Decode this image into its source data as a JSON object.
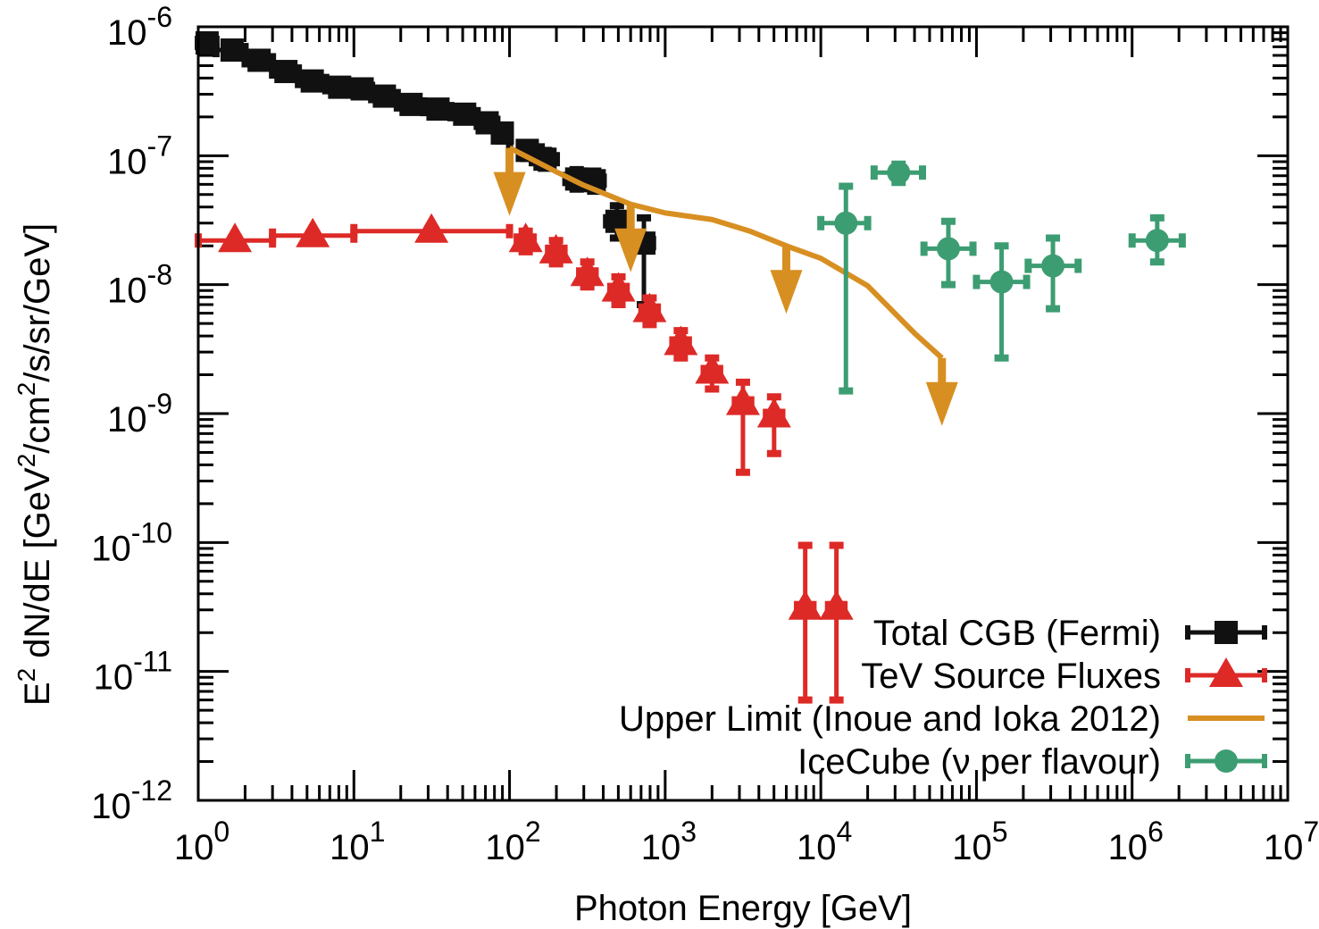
{
  "chart_data": {
    "type": "scatter",
    "title": "",
    "xlabel": "Photon Energy [GeV]",
    "ylabel_parts": {
      "pre": "E",
      "sup1": "2",
      "mid": " dN/dE [GeV",
      "sup2": "2",
      "mid2": "/cm",
      "sup3": "2",
      "post": "/s/sr/GeV]"
    },
    "ylabel": "E^2 dN/dE [GeV^2/cm^2/s/sr/GeV]",
    "xscale": "log",
    "yscale": "log",
    "xlim": [
      1,
      10000000
    ],
    "ylim": [
      1e-12,
      1e-06
    ],
    "x_ticks": [
      {
        "base": "10",
        "exp": "0",
        "value": 1
      },
      {
        "base": "10",
        "exp": "1",
        "value": 10
      },
      {
        "base": "10",
        "exp": "2",
        "value": 100
      },
      {
        "base": "10",
        "exp": "3",
        "value": 1000
      },
      {
        "base": "10",
        "exp": "4",
        "value": 10000
      },
      {
        "base": "10",
        "exp": "5",
        "value": 100000
      },
      {
        "base": "10",
        "exp": "6",
        "value": 1000000
      },
      {
        "base": "10",
        "exp": "7",
        "value": 10000000
      }
    ],
    "y_ticks": [
      {
        "base": "10",
        "exp": "-12",
        "value": 1e-12
      },
      {
        "base": "10",
        "exp": "-11",
        "value": 1e-11
      },
      {
        "base": "10",
        "exp": "-10",
        "value": 1e-10
      },
      {
        "base": "10",
        "exp": "-9",
        "value": 1e-09
      },
      {
        "base": "10",
        "exp": "-8",
        "value": 1e-08
      },
      {
        "base": "10",
        "exp": "-7",
        "value": 1e-07
      },
      {
        "base": "10",
        "exp": "-6",
        "value": 1e-06
      }
    ],
    "grid": false,
    "legend_position": "bottom-right",
    "series": [
      {
        "name": "Total CGB (Fermi)",
        "color": "#111111",
        "marker": "square",
        "points": [
          {
            "x": 1.14,
            "y": 7.5e-07,
            "xlo": 1.0,
            "xhi": 1.3,
            "ylo": 7e-07,
            "yhi": 8e-07
          },
          {
            "x": 1.65,
            "y": 6.6e-07,
            "xlo": 1.3,
            "xhi": 2.0,
            "ylo": 6.2e-07,
            "yhi": 7e-07
          },
          {
            "x": 2.46,
            "y": 5.5e-07,
            "xlo": 2.0,
            "xhi": 3.0,
            "ylo": 5.1e-07,
            "yhi": 5.9e-07
          },
          {
            "x": 3.66,
            "y": 4.5e-07,
            "xlo": 3.0,
            "xhi": 4.4,
            "ylo": 4.2e-07,
            "yhi": 4.8e-07
          },
          {
            "x": 5.4,
            "y": 3.8e-07,
            "xlo": 4.4,
            "xhi": 6.6,
            "ylo": 3.5e-07,
            "yhi": 4.1e-07
          },
          {
            "x": 8.1,
            "y": 3.4e-07,
            "xlo": 6.6,
            "xhi": 9.9,
            "ylo": 3.1e-07,
            "yhi": 3.7e-07
          },
          {
            "x": 11.3,
            "y": 3.3e-07,
            "xlo": 9.9,
            "xhi": 13.0,
            "ylo": 3e-07,
            "yhi": 3.6e-07
          },
          {
            "x": 15.7,
            "y": 2.9e-07,
            "xlo": 13.0,
            "xhi": 19.0,
            "ylo": 2.6e-07,
            "yhi": 3.2e-07
          },
          {
            "x": 23.3,
            "y": 2.5e-07,
            "xlo": 19.0,
            "xhi": 28.0,
            "ylo": 2.3e-07,
            "yhi": 2.7e-07
          },
          {
            "x": 34.7,
            "y": 2.3e-07,
            "xlo": 28.0,
            "xhi": 42.0,
            "ylo": 2.1e-07,
            "yhi": 2.5e-07
          },
          {
            "x": 51.5,
            "y": 2.1e-07,
            "xlo": 42.0,
            "xhi": 62.0,
            "ylo": 1.9e-07,
            "yhi": 2.3e-07
          },
          {
            "x": 71.8,
            "y": 1.8e-07,
            "xlo": 62.0,
            "xhi": 83.0,
            "ylo": 1.6e-07,
            "yhi": 2e-07
          },
          {
            "x": 89.9,
            "y": 1.5e-07,
            "xlo": 83.0,
            "xhi": 100.0,
            "ylo": 1.3e-07,
            "yhi": 1.7e-07
          },
          {
            "x": 130,
            "y": 1.1e-07,
            "xlo": 100,
            "xhi": 160,
            "ylo": 9.5e-08,
            "yhi": 1.25e-07
          },
          {
            "x": 169,
            "y": 9.4e-08,
            "xlo": 140,
            "xhi": 200,
            "ylo": 8e-08,
            "yhi": 1.1e-07
          },
          {
            "x": 270,
            "y": 6.6e-08,
            "xlo": 230,
            "xhi": 320,
            "ylo": 5.5e-08,
            "yhi": 7.8e-08
          },
          {
            "x": 350,
            "y": 6.4e-08,
            "xlo": 300,
            "xhi": 400,
            "ylo": 5.3e-08,
            "yhi": 7.6e-08
          },
          {
            "x": 490,
            "y": 3.1e-08,
            "xlo": 420,
            "xhi": 560,
            "ylo": 2.3e-08,
            "yhi": 4.1e-08
          },
          {
            "x": 730,
            "y": 2.1e-08,
            "xlo": 630,
            "xhi": 830,
            "ylo": 7e-09,
            "yhi": 3.3e-08
          }
        ]
      },
      {
        "name": "TeV Source Fluxes",
        "color": "#dd2a27",
        "marker": "triangle",
        "points": [
          {
            "x": 1.72,
            "y": 2.2e-08,
            "xlo": 1.0,
            "xhi": 3.0,
            "ylo": 2.1e-08,
            "yhi": 2.3e-08
          },
          {
            "x": 5.44,
            "y": 2.4e-08,
            "xlo": 3.0,
            "xhi": 10.0,
            "ylo": 2.3e-08,
            "yhi": 2.5e-08
          },
          {
            "x": 31.5,
            "y": 2.6e-08,
            "xlo": 10.0,
            "xhi": 100.0,
            "ylo": 2.5e-08,
            "yhi": 2.7e-08
          },
          {
            "x": 127,
            "y": 2.2e-08,
            "xlo": 112,
            "xhi": 142,
            "ylo": 1.8e-08,
            "yhi": 2.6e-08
          },
          {
            "x": 199,
            "y": 1.8e-08,
            "xlo": 178,
            "xhi": 224,
            "ylo": 1.45e-08,
            "yhi": 2.2e-08
          },
          {
            "x": 316,
            "y": 1.2e-08,
            "xlo": 282,
            "xhi": 355,
            "ylo": 9.6e-09,
            "yhi": 1.5e-08
          },
          {
            "x": 501,
            "y": 9.1e-09,
            "xlo": 447,
            "xhi": 562,
            "ylo": 7e-09,
            "yhi": 1.15e-08
          },
          {
            "x": 794,
            "y": 6.3e-09,
            "xlo": 708,
            "xhi": 891,
            "ylo": 4.9e-09,
            "yhi": 7.9e-09
          },
          {
            "x": 1260,
            "y": 3.5e-09,
            "xlo": 1120,
            "xhi": 1410,
            "ylo": 2.7e-09,
            "yhi": 4.4e-09
          },
          {
            "x": 2000,
            "y": 2.1e-09,
            "xlo": 1780,
            "xhi": 2240,
            "ylo": 1.55e-09,
            "yhi": 2.7e-09
          },
          {
            "x": 3160,
            "y": 1.2e-09,
            "xlo": 2820,
            "xhi": 3550,
            "ylo": 3.5e-10,
            "yhi": 1.75e-09
          },
          {
            "x": 5010,
            "y": 9.6e-10,
            "xlo": 4470,
            "xhi": 5620,
            "ylo": 4.9e-10,
            "yhi": 1.35e-09
          },
          {
            "x": 7940,
            "y": 3.1e-11,
            "xlo": 7080,
            "xhi": 8910,
            "ylo": 6e-12,
            "yhi": 9.5e-11
          },
          {
            "x": 12600,
            "y": 3.1e-11,
            "xlo": 11200,
            "xhi": 14100,
            "ylo": 6e-12,
            "yhi": 9.5e-11
          }
        ]
      },
      {
        "name": "Upper Limit (Inoue and Ioka 2012)",
        "color": "#d88f22",
        "marker": "line",
        "line": [
          {
            "x": 100,
            "y": 1.15e-07
          },
          {
            "x": 200,
            "y": 7.5e-08
          },
          {
            "x": 300,
            "y": 5.9e-08
          },
          {
            "x": 600,
            "y": 4.2e-08
          },
          {
            "x": 1000,
            "y": 3.6e-08
          },
          {
            "x": 2000,
            "y": 3.2e-08
          },
          {
            "x": 3500,
            "y": 2.6e-08
          },
          {
            "x": 6000,
            "y": 2e-08
          },
          {
            "x": 10000,
            "y": 1.6e-08
          },
          {
            "x": 20000,
            "y": 9.8e-09
          },
          {
            "x": 40000,
            "y": 4.2e-09
          },
          {
            "x": 60000,
            "y": 2.7e-09
          }
        ],
        "upper_limit_arrows": [
          {
            "x": 100,
            "y": 1.15e-07
          },
          {
            "x": 600,
            "y": 4.2e-08
          },
          {
            "x": 6000,
            "y": 2e-08
          },
          {
            "x": 60000,
            "y": 2.7e-09
          }
        ]
      },
      {
        "name": "IceCube (ν per flavour)",
        "color": "#3d9d72",
        "marker": "circle",
        "points": [
          {
            "x": 14500,
            "y": 3e-08,
            "xlo": 10000,
            "xhi": 20000,
            "ylo": 1.5e-09,
            "yhi": 5.8e-08
          },
          {
            "x": 31600,
            "y": 7.4e-08,
            "xlo": 22000,
            "xhi": 45000,
            "ylo": 6.2e-08,
            "yhi": 8.6e-08
          },
          {
            "x": 66000,
            "y": 1.9e-08,
            "xlo": 46000,
            "xhi": 95000,
            "ylo": 1e-08,
            "yhi": 3.1e-08
          },
          {
            "x": 145000,
            "y": 1.05e-08,
            "xlo": 100000,
            "xhi": 210000,
            "ylo": 2.7e-09,
            "yhi": 2e-08
          },
          {
            "x": 310000,
            "y": 1.4e-08,
            "xlo": 215000,
            "xhi": 450000,
            "ylo": 6.5e-09,
            "yhi": 2.3e-08
          },
          {
            "x": 1450000,
            "y": 2.2e-08,
            "xlo": 1000000,
            "xhi": 2100000,
            "ylo": 1.5e-08,
            "yhi": 3.3e-08
          }
        ]
      }
    ]
  }
}
